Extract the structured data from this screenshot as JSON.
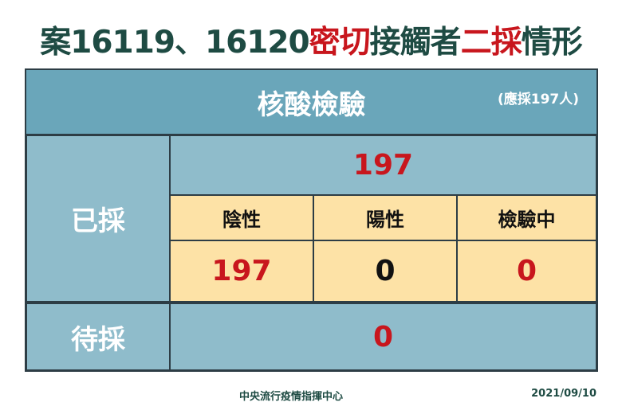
{
  "title": {
    "part1": "案16119、16120",
    "part2": "密切",
    "part3": "接觸者",
    "part4": "二採",
    "part5": "情形"
  },
  "header": {
    "title": "核酸檢驗",
    "subtitle": "(應採197人)"
  },
  "collected": {
    "label": "已採",
    "total": "197",
    "columns": [
      {
        "label": "陰性",
        "value": "197"
      },
      {
        "label": "陽性",
        "value": "0"
      },
      {
        "label": "檢驗中",
        "value": "0"
      }
    ]
  },
  "pending": {
    "label": "待採",
    "value": "0"
  },
  "footer": {
    "org": "中央流行疫情指揮中心",
    "date": "2021/09/10"
  },
  "colors": {
    "title_green": "#1e4b43",
    "accent_red": "#c8161d",
    "header_blue": "#6aa6ba",
    "cell_blue": "#8fbccb",
    "cell_yellow": "#fde2a6"
  }
}
